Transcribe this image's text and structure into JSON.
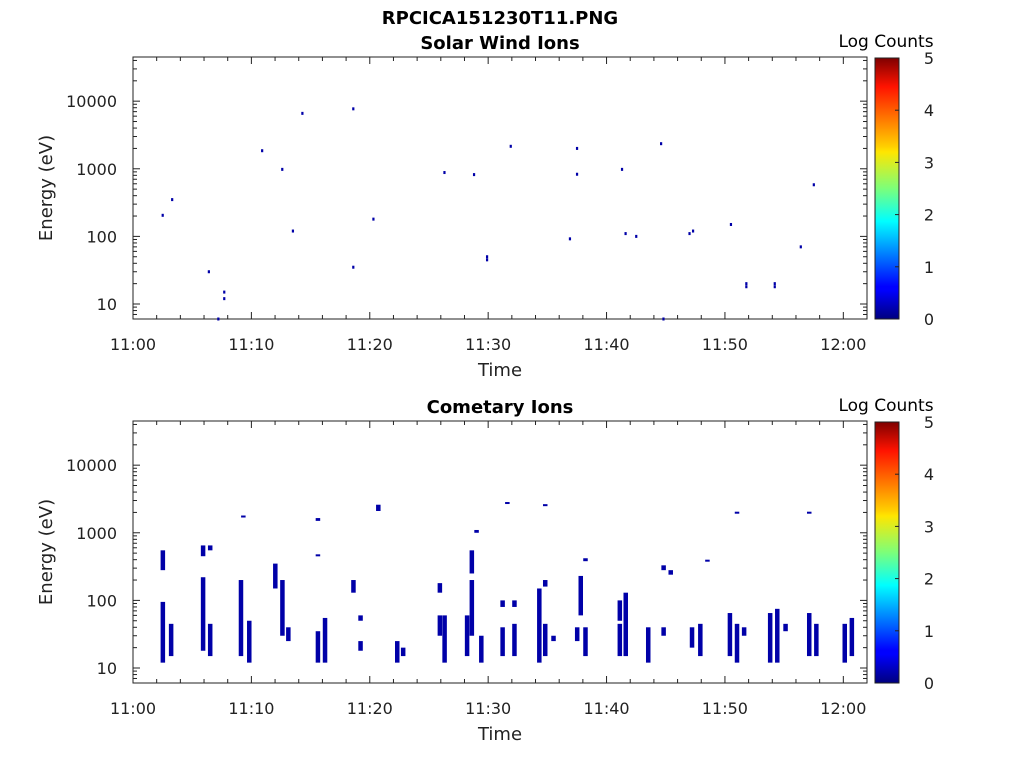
{
  "figure_title": "RPCICA151230T11.PNG",
  "chart_data": [
    {
      "type": "heatmap",
      "title": "Solar Wind Ions",
      "xlabel": "Time",
      "ylabel": "Energy (eV)",
      "x_ticks": [
        "11:00",
        "11:10",
        "11:20",
        "11:30",
        "11:40",
        "11:50",
        "12:00"
      ],
      "x_range_minutes": [
        0,
        62
      ],
      "y_scale": "log",
      "y_ticks": [
        "10",
        "100",
        "1000",
        "10000"
      ],
      "y_range": [
        6,
        45000
      ],
      "colorbar": {
        "title": "Log Counts",
        "ticks": [
          "0",
          "1",
          "2",
          "3",
          "4",
          "5"
        ],
        "range": [
          0,
          5
        ],
        "colormap": "jet"
      },
      "points": [
        [
          2.5,
          205
        ],
        [
          3.3,
          350
        ],
        [
          6.4,
          30
        ],
        [
          7.7,
          15
        ],
        [
          7.7,
          12
        ],
        [
          7.2,
          6
        ],
        [
          10.9,
          1850
        ],
        [
          12.6,
          980
        ],
        [
          13.5,
          120
        ],
        [
          14.3,
          6600
        ],
        [
          18.6,
          7700
        ],
        [
          18.6,
          35
        ],
        [
          20.3,
          180
        ],
        [
          26.3,
          880
        ],
        [
          28.8,
          820
        ],
        [
          29.9,
          50
        ],
        [
          29.9,
          45
        ],
        [
          31.9,
          2150
        ],
        [
          36.9,
          92
        ],
        [
          37.5,
          2000
        ],
        [
          37.5,
          830
        ],
        [
          41.3,
          980
        ],
        [
          41.6,
          110
        ],
        [
          42.5,
          100
        ],
        [
          44.6,
          2350
        ],
        [
          44.8,
          6
        ],
        [
          47.0,
          110
        ],
        [
          47.3,
          120
        ],
        [
          50.5,
          150
        ],
        [
          51.8,
          20
        ],
        [
          51.8,
          18
        ],
        [
          54.2,
          20
        ],
        [
          54.2,
          18
        ],
        [
          56.4,
          70
        ],
        [
          57.5,
          580
        ]
      ]
    },
    {
      "type": "heatmap",
      "title": "Cometary Ions",
      "xlabel": "Time",
      "ylabel": "Energy (eV)",
      "x_ticks": [
        "11:00",
        "11:10",
        "11:20",
        "11:30",
        "11:40",
        "11:50",
        "12:00"
      ],
      "x_range_minutes": [
        0,
        62
      ],
      "y_scale": "log",
      "y_ticks": [
        "10",
        "100",
        "1000",
        "10000"
      ],
      "y_range": [
        6,
        45000
      ],
      "colorbar": {
        "title": "Log Counts",
        "ticks": [
          "0",
          "1",
          "2",
          "3",
          "4",
          "5"
        ],
        "range": [
          0,
          5
        ],
        "colormap": "jet"
      },
      "columns": [
        {
          "x": 2.5,
          "ranges": [
            [
              12,
              95
            ],
            [
              280,
              550
            ]
          ]
        },
        {
          "x": 3.2,
          "ranges": [
            [
              15,
              45
            ]
          ]
        },
        {
          "x": 5.9,
          "ranges": [
            [
              18,
              220
            ],
            [
              450,
              650
            ]
          ]
        },
        {
          "x": 6.5,
          "ranges": [
            [
              15,
              45
            ],
            [
              550,
              650
            ]
          ]
        },
        {
          "x": 9.1,
          "ranges": [
            [
              15,
              200
            ]
          ]
        },
        {
          "x": 9.3,
          "ranges": [
            [
              1700,
              1800
            ]
          ]
        },
        {
          "x": 9.8,
          "ranges": [
            [
              12,
              50
            ]
          ]
        },
        {
          "x": 12.0,
          "ranges": [
            [
              150,
              350
            ]
          ]
        },
        {
          "x": 12.6,
          "ranges": [
            [
              30,
              200
            ]
          ]
        },
        {
          "x": 13.1,
          "ranges": [
            [
              25,
              40
            ]
          ]
        },
        {
          "x": 15.6,
          "ranges": [
            [
              12,
              35
            ],
            [
              450,
              480
            ],
            [
              1500,
              1650
            ]
          ]
        },
        {
          "x": 16.2,
          "ranges": [
            [
              12,
              55
            ]
          ]
        },
        {
          "x": 18.6,
          "ranges": [
            [
              130,
              200
            ]
          ]
        },
        {
          "x": 19.2,
          "ranges": [
            [
              18,
              25
            ],
            [
              50,
              60
            ]
          ]
        },
        {
          "x": 20.7,
          "ranges": [
            [
              2100,
              2600
            ]
          ]
        },
        {
          "x": 22.3,
          "ranges": [
            [
              12,
              25
            ]
          ]
        },
        {
          "x": 22.8,
          "ranges": [
            [
              15,
              20
            ]
          ]
        },
        {
          "x": 25.9,
          "ranges": [
            [
              30,
              60
            ],
            [
              130,
              180
            ]
          ]
        },
        {
          "x": 26.3,
          "ranges": [
            [
              12,
              60
            ]
          ]
        },
        {
          "x": 28.2,
          "ranges": [
            [
              15,
              60
            ]
          ]
        },
        {
          "x": 28.6,
          "ranges": [
            [
              30,
              200
            ],
            [
              250,
              550
            ]
          ]
        },
        {
          "x": 29.0,
          "ranges": [
            [
              1000,
              1100
            ]
          ]
        },
        {
          "x": 29.4,
          "ranges": [
            [
              12,
              30
            ]
          ]
        },
        {
          "x": 31.2,
          "ranges": [
            [
              15,
              40
            ],
            [
              80,
              100
            ]
          ]
        },
        {
          "x": 31.6,
          "ranges": [
            [
              2700,
              2850
            ]
          ]
        },
        {
          "x": 32.2,
          "ranges": [
            [
              15,
              45
            ],
            [
              80,
              100
            ]
          ]
        },
        {
          "x": 34.3,
          "ranges": [
            [
              12,
              150
            ]
          ]
        },
        {
          "x": 34.8,
          "ranges": [
            [
              15,
              45
            ],
            [
              160,
              200
            ],
            [
              2500,
              2650
            ]
          ]
        },
        {
          "x": 35.5,
          "ranges": [
            [
              25,
              30
            ]
          ]
        },
        {
          "x": 37.5,
          "ranges": [
            [
              25,
              40
            ]
          ]
        },
        {
          "x": 37.8,
          "ranges": [
            [
              60,
              230
            ]
          ]
        },
        {
          "x": 38.2,
          "ranges": [
            [
              15,
              40
            ],
            [
              380,
              420
            ]
          ]
        },
        {
          "x": 41.1,
          "ranges": [
            [
              15,
              45
            ],
            [
              50,
              100
            ]
          ]
        },
        {
          "x": 41.6,
          "ranges": [
            [
              15,
              130
            ]
          ]
        },
        {
          "x": 43.5,
          "ranges": [
            [
              12,
              40
            ]
          ]
        },
        {
          "x": 44.8,
          "ranges": [
            [
              30,
              40
            ],
            [
              280,
              330
            ]
          ]
        },
        {
          "x": 45.4,
          "ranges": [
            [
              240,
              280
            ]
          ]
        },
        {
          "x": 47.2,
          "ranges": [
            [
              20,
              40
            ]
          ]
        },
        {
          "x": 47.9,
          "ranges": [
            [
              15,
              45
            ]
          ]
        },
        {
          "x": 48.5,
          "ranges": [
            [
              380,
              400
            ]
          ]
        },
        {
          "x": 50.4,
          "ranges": [
            [
              15,
              65
            ]
          ]
        },
        {
          "x": 51.0,
          "ranges": [
            [
              12,
              45
            ],
            [
              1950,
              2050
            ]
          ]
        },
        {
          "x": 51.6,
          "ranges": [
            [
              30,
              40
            ]
          ]
        },
        {
          "x": 53.8,
          "ranges": [
            [
              12,
              65
            ]
          ]
        },
        {
          "x": 54.4,
          "ranges": [
            [
              12,
              75
            ]
          ]
        },
        {
          "x": 55.1,
          "ranges": [
            [
              35,
              45
            ]
          ]
        },
        {
          "x": 57.1,
          "ranges": [
            [
              15,
              65
            ],
            [
              1950,
              2050
            ]
          ]
        },
        {
          "x": 57.7,
          "ranges": [
            [
              15,
              45
            ]
          ]
        },
        {
          "x": 60.1,
          "ranges": [
            [
              12,
              45
            ]
          ]
        },
        {
          "x": 60.7,
          "ranges": [
            [
              15,
              55
            ]
          ]
        }
      ]
    }
  ]
}
